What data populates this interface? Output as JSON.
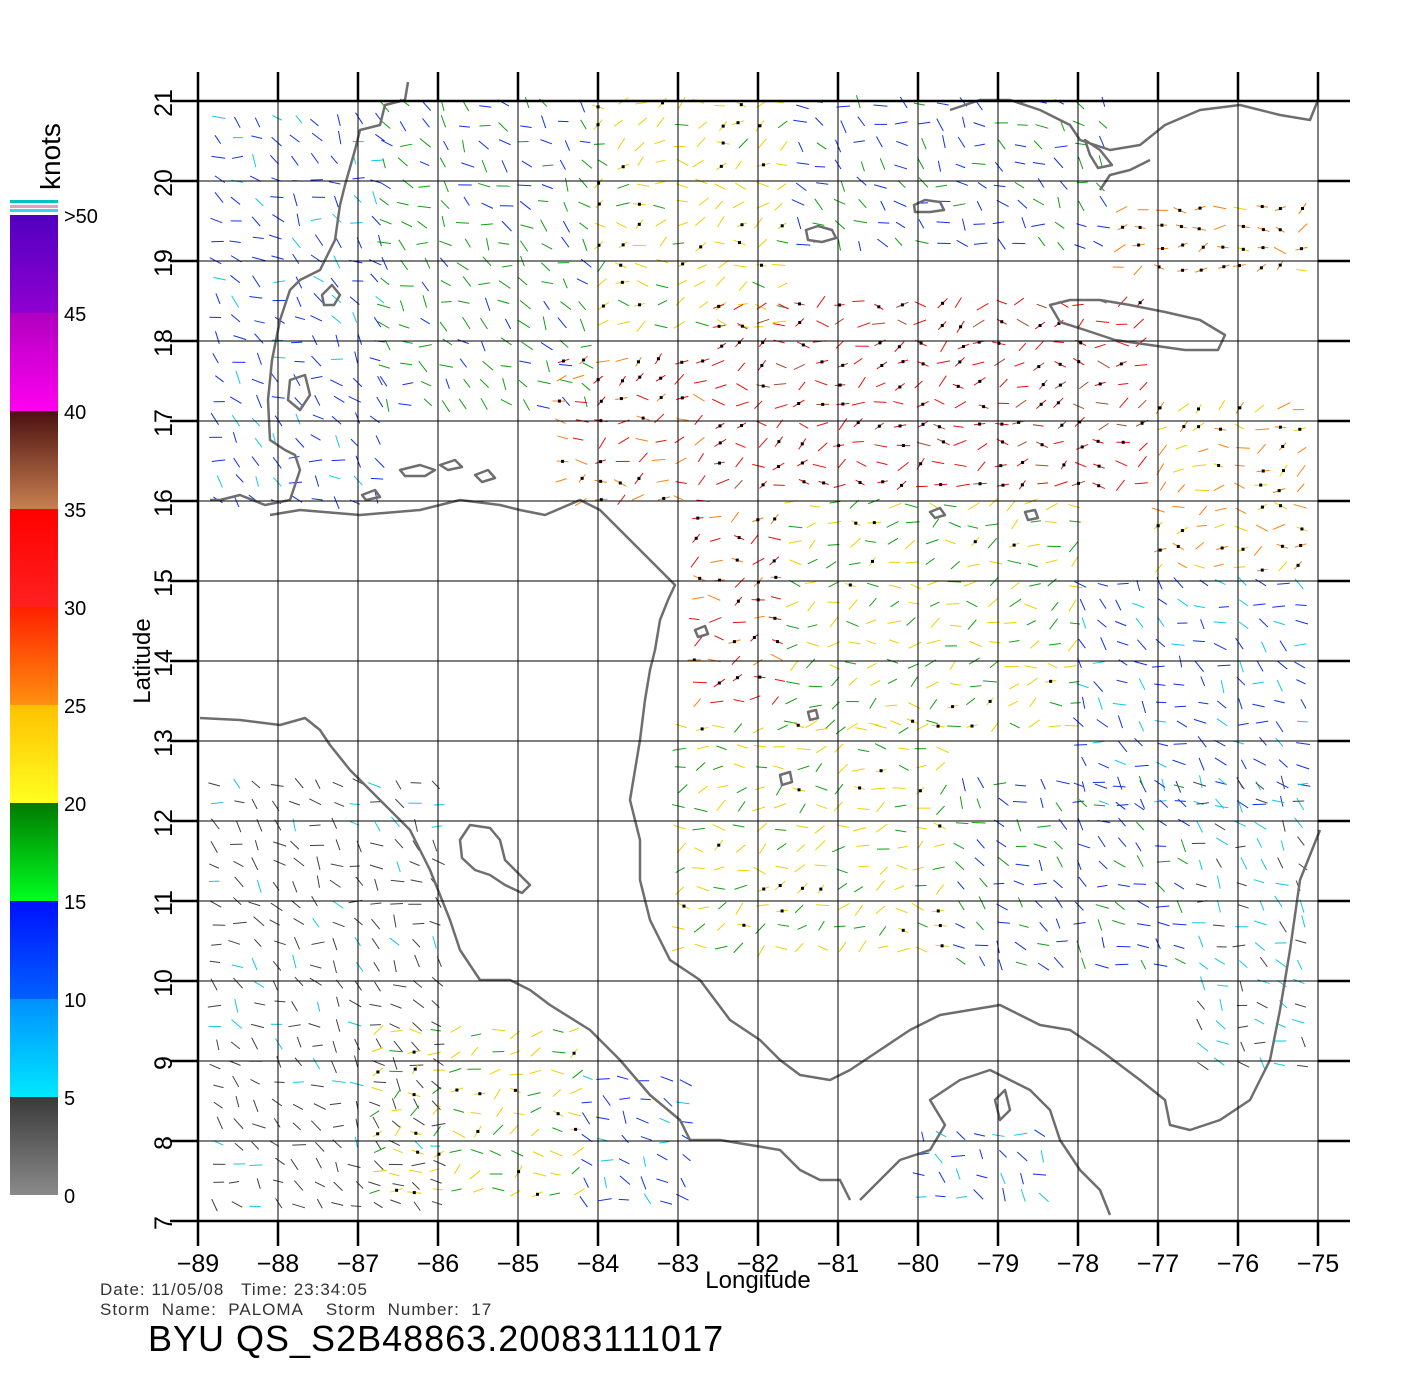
{
  "chart_data": {
    "type": "wind-vector-map",
    "xlabel": "Longitude",
    "ylabel": "Latitude",
    "xlim": [
      -89,
      -75
    ],
    "ylim": [
      7,
      21
    ],
    "x_ticks": [
      -89,
      -88,
      -87,
      -86,
      -85,
      -84,
      -83,
      -82,
      -81,
      -80,
      -79,
      -78,
      -77,
      -76,
      -75
    ],
    "y_ticks": [
      7,
      8,
      9,
      10,
      11,
      12,
      13,
      14,
      15,
      16,
      17,
      18,
      19,
      20,
      21
    ],
    "grid": true,
    "colorbar": {
      "unit": "knots",
      "labels": [
        "0",
        "5",
        "10",
        "15",
        "20",
        "25",
        "30",
        "35",
        "40",
        "45",
        ">50"
      ],
      "bands": [
        {
          "from": 0,
          "to": 5,
          "top": "#3a3a3a",
          "bottom": "#8a8a8a"
        },
        {
          "from": 5,
          "to": 10,
          "top": "#0090ff",
          "bottom": "#00e8ff"
        },
        {
          "from": 10,
          "to": 15,
          "top": "#0010ff",
          "bottom": "#0060ff"
        },
        {
          "from": 15,
          "to": 20,
          "top": "#007a00",
          "bottom": "#00ff20"
        },
        {
          "from": 20,
          "to": 25,
          "top": "#ffc000",
          "bottom": "#ffff20"
        },
        {
          "from": 25,
          "to": 30,
          "top": "#ff2000",
          "bottom": "#ff9010"
        },
        {
          "from": 30,
          "to": 35,
          "top": "#ff0000",
          "bottom": "#ff2020"
        },
        {
          "from": 35,
          "to": 40,
          "top": "#4a1010",
          "bottom": "#c88050"
        },
        {
          "from": 40,
          "to": 45,
          "top": "#b000c0",
          "bottom": "#ff00f0"
        },
        {
          "from": 45,
          "to": 50,
          "top": "#5000c0",
          "bottom": "#9000d0"
        }
      ]
    },
    "wind_regions": [
      {
        "lon": [
          -88.8,
          -86.7
        ],
        "lat": [
          15.8,
          20.8
        ],
        "speed": 12
      },
      {
        "lon": [
          -86.7,
          -84.0
        ],
        "lat": [
          17.0,
          21.0
        ],
        "speed": 16
      },
      {
        "lon": [
          -84.0,
          -81.5
        ],
        "lat": [
          18.0,
          21.0
        ],
        "speed": 22
      },
      {
        "lon": [
          -81.5,
          -77.5
        ],
        "lat": [
          19.0,
          21.0
        ],
        "speed": 14
      },
      {
        "lon": [
          -77.5,
          -75.2
        ],
        "lat": [
          18.8,
          19.7
        ],
        "speed": 27
      },
      {
        "lon": [
          -84.5,
          -82.5
        ],
        "lat": [
          15.8,
          17.8
        ],
        "speed": 30
      },
      {
        "lon": [
          -82.5,
          -77.0
        ],
        "lat": [
          16.2,
          18.5
        ],
        "speed": 33
      },
      {
        "lon": [
          -77.0,
          -75.2
        ],
        "lat": [
          15.2,
          17.2
        ],
        "speed": 26
      },
      {
        "lon": [
          -82.8,
          -81.6
        ],
        "lat": [
          13.5,
          15.8
        ],
        "speed": 30
      },
      {
        "lon": [
          -81.6,
          -78.0
        ],
        "lat": [
          13.0,
          16.0
        ],
        "speed": 20
      },
      {
        "lon": [
          -78.0,
          -75.2
        ],
        "lat": [
          12.0,
          15.0
        ],
        "speed": 11
      },
      {
        "lon": [
          -83.0,
          -79.5
        ],
        "lat": [
          10.2,
          13.2
        ],
        "speed": 21
      },
      {
        "lon": [
          -79.5,
          -76.5
        ],
        "lat": [
          10.0,
          12.5
        ],
        "speed": 14
      },
      {
        "lon": [
          -76.5,
          -75.2
        ],
        "lat": [
          8.8,
          12.5
        ],
        "speed": 6
      },
      {
        "lon": [
          -88.8,
          -86.0
        ],
        "lat": [
          7.2,
          12.5
        ],
        "speed": 3
      },
      {
        "lon": [
          -86.8,
          -84.2
        ],
        "lat": [
          7.2,
          9.4
        ],
        "speed": 21
      },
      {
        "lon": [
          -84.2,
          -82.8
        ],
        "lat": [
          7.2,
          8.8
        ],
        "speed": 12
      },
      {
        "lon": [
          -80.0,
          -78.3
        ],
        "lat": [
          7.2,
          8.1
        ],
        "speed": 11
      }
    ]
  },
  "info": {
    "date_line": "Date: 11/05/08   Time: 23:34:05",
    "storm_line": "Storm  Name:  PALOMA    Storm  Number:  17"
  },
  "product_id": "BYU  QS_S2B48863.20083111017"
}
